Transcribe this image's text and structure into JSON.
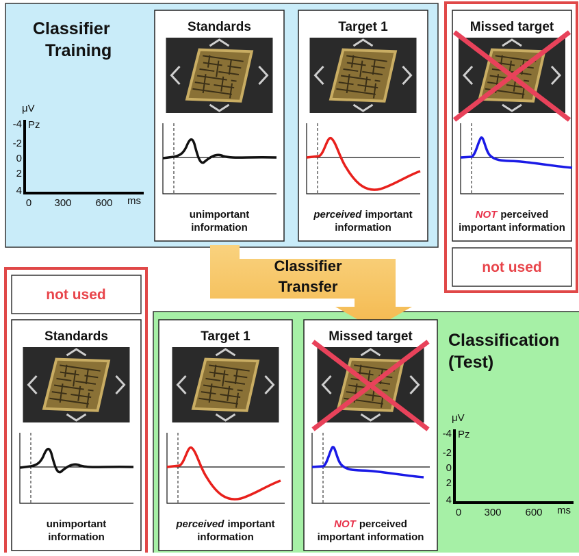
{
  "training": {
    "title": [
      "Classifier",
      "Training"
    ],
    "axis": {
      "unit": "μV",
      "channel": "Pz",
      "y_labels": [
        "-4",
        "-2",
        "0",
        "2",
        "4"
      ],
      "x_labels": [
        "0",
        "300",
        "600"
      ],
      "x_unit": "ms"
    },
    "panels": [
      {
        "title": "Standards",
        "caption": {
          "line1": "unimportant",
          "line2": "information"
        }
      },
      {
        "title": "Target 1",
        "caption": {
          "emphasis": "perceived",
          "rest": "important",
          "line2": "information"
        }
      }
    ]
  },
  "missed_top": {
    "panel": {
      "title": "Missed target",
      "caption": {
        "emphasis": "NOT",
        "rest": "perceived",
        "line2": "important information"
      }
    },
    "status": "not used"
  },
  "transfer": [
    "Classifier",
    "Transfer"
  ],
  "standards_bottom": {
    "status": "not used",
    "panel": {
      "title": "Standards",
      "caption": {
        "line1": "unimportant",
        "line2": "information"
      }
    }
  },
  "test": {
    "title": [
      "Classification",
      "(Test)"
    ],
    "axis": {
      "unit": "μV",
      "channel": "Pz",
      "y_labels": [
        "-4",
        "-2",
        "0",
        "2",
        "4"
      ],
      "x_labels": [
        "0",
        "300",
        "600"
      ],
      "x_unit": "ms"
    },
    "panels": [
      {
        "title": "Target 1",
        "caption": {
          "emphasis": "perceived",
          "rest": "important",
          "line2": "information"
        }
      },
      {
        "title": "Missed target",
        "caption": {
          "emphasis": "NOT",
          "rest": "perceived",
          "line2": "important information"
        }
      }
    ]
  }
}
